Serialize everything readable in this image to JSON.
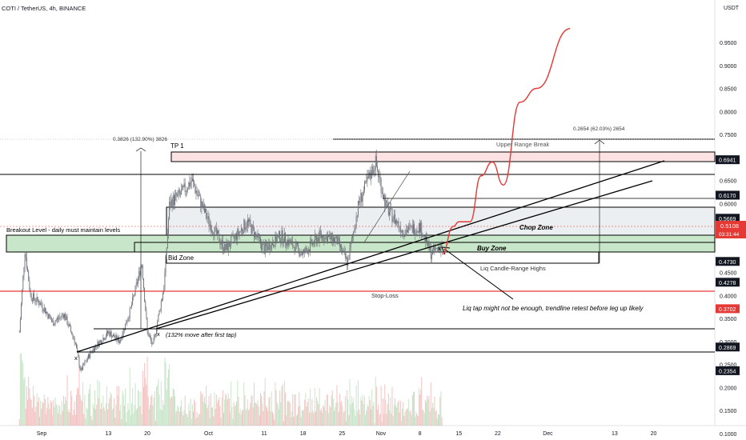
{
  "header": {
    "symbol": "COTI / TetherUS, 4h, BINANCE"
  },
  "axis": {
    "currency": "USDT"
  },
  "price_ticks": [
    "0.9500",
    "0.9000",
    "0.8500",
    "0.8000",
    "0.7500",
    "0.6500",
    "0.6000",
    "0.5500",
    "0.4500",
    "0.4000",
    "0.3500",
    "0.3000",
    "0.2500",
    "0.2000",
    "0.1500",
    "0.1000"
  ],
  "price_ticks_values": [
    0.95,
    0.9,
    0.85,
    0.8,
    0.75,
    0.65,
    0.6,
    0.55,
    0.45,
    0.4,
    0.35,
    0.3,
    0.25,
    0.2,
    0.15,
    0.1
  ],
  "date_ticks": [
    "Sep",
    "13",
    "20",
    "Oct",
    "11",
    "18",
    "25",
    "Nov",
    "8",
    "15",
    "22",
    "Dec",
    "13",
    "20"
  ],
  "level_badges": [
    {
      "label": "0.6941",
      "value": 0.6941,
      "color": "#131722"
    },
    {
      "label": "0.6170",
      "value": 0.617,
      "color": "#131722"
    },
    {
      "label": "0.5669",
      "value": 0.5669,
      "color": "#131722"
    },
    {
      "label": "0.4730",
      "value": 0.473,
      "color": "#131722"
    },
    {
      "label": "0.4278",
      "value": 0.4278,
      "color": "#131722"
    },
    {
      "label": "0.3702",
      "value": 0.3702,
      "color": "#e53935"
    },
    {
      "label": "0.2869",
      "value": 0.2869,
      "color": "#131722"
    },
    {
      "label": "0.2354",
      "value": 0.2354,
      "color": "#131722"
    }
  ],
  "current_price": {
    "label": "0.5108",
    "countdown": "03:31:44",
    "value": 0.5108,
    "color": "#e53935"
  },
  "annotations": {
    "tp1": "TP 1",
    "upper_range_break": "Upper Range Break",
    "chop_zone": "Chop Zone",
    "buy_zone": "Buy Zone",
    "bid_zone": "Bid Zone",
    "liq_highs": "Liq Candle-Range Highs",
    "stop_loss": "Stop-Loss",
    "breakout_level": "Breakout Level - daily must maintain levels",
    "measure_left": "0.3826 (132.90%) 3826",
    "measure_right": "0.2654 (62.03%) 2654",
    "move_note": "(132% move after first tap)",
    "liq_note": "Liq tap might not be enough, trendline retest before leg up likely",
    "x_mark": "x"
  },
  "colors": {
    "red": "#e53935",
    "green_zone": "#c8e6c9",
    "pink_zone": "#fde2e4",
    "grey_zone": "#eceff1",
    "candle": "#6b6f78",
    "line": "#000000"
  },
  "chart_data": {
    "type": "line",
    "title": "COTI / TetherUS, 4h, BINANCE",
    "ylabel": "USDT",
    "ylim": [
      0.08,
      1.0
    ],
    "price_path": [
      {
        "date": "Aug 28",
        "price": 0.32
      },
      {
        "date": "Aug 29",
        "price": 0.5
      },
      {
        "date": "Aug 30",
        "price": 0.4
      },
      {
        "date": "Sep 1",
        "price": 0.38
      },
      {
        "date": "Sep 3",
        "price": 0.34
      },
      {
        "date": "Sep 5",
        "price": 0.36
      },
      {
        "date": "Sep 7",
        "price": 0.3
      },
      {
        "date": "Sep 8",
        "price": 0.235
      },
      {
        "date": "Sep 10",
        "price": 0.28
      },
      {
        "date": "Sep 13",
        "price": 0.32
      },
      {
        "date": "Sep 15",
        "price": 0.3
      },
      {
        "date": "Sep 17",
        "price": 0.37
      },
      {
        "date": "Sep 19",
        "price": 0.47
      },
      {
        "date": "Sep 20",
        "price": 0.32
      },
      {
        "date": "Sep 21",
        "price": 0.29
      },
      {
        "date": "Sep 23",
        "price": 0.42
      },
      {
        "date": "Sep 24",
        "price": 0.6
      },
      {
        "date": "Sep 26",
        "price": 0.62
      },
      {
        "date": "Sep 28",
        "price": 0.65
      },
      {
        "date": "Oct 1",
        "price": 0.56
      },
      {
        "date": "Oct 4",
        "price": 0.5
      },
      {
        "date": "Oct 8",
        "price": 0.56
      },
      {
        "date": "Oct 11",
        "price": 0.5
      },
      {
        "date": "Oct 14",
        "price": 0.53
      },
      {
        "date": "Oct 18",
        "price": 0.49
      },
      {
        "date": "Oct 21",
        "price": 0.53
      },
      {
        "date": "Oct 24",
        "price": 0.52
      },
      {
        "date": "Oct 26",
        "price": 0.47
      },
      {
        "date": "Oct 28",
        "price": 0.6
      },
      {
        "date": "Oct 31",
        "price": 0.69
      },
      {
        "date": "Nov 2",
        "price": 0.59
      },
      {
        "date": "Nov 5",
        "price": 0.54
      },
      {
        "date": "Nov 8",
        "price": 0.55
      },
      {
        "date": "Nov 10",
        "price": 0.49
      },
      {
        "date": "Nov 12",
        "price": 0.5108
      }
    ],
    "projection": [
      {
        "date": "Nov 12",
        "price": 0.49
      },
      {
        "date": "Nov 14",
        "price": 0.55
      },
      {
        "date": "Nov 15",
        "price": 0.56
      },
      {
        "date": "Nov 17",
        "price": 0.56
      },
      {
        "date": "Nov 19",
        "price": 0.66
      },
      {
        "date": "Nov 21",
        "price": 0.69
      },
      {
        "date": "Nov 23",
        "price": 0.64
      },
      {
        "date": "Nov 26",
        "price": 0.82
      },
      {
        "date": "Nov 29",
        "price": 0.85
      },
      {
        "date": "Dec 5",
        "price": 0.98
      }
    ],
    "levels": [
      0.6941,
      0.617,
      0.5669,
      0.473,
      0.4278,
      0.3702,
      0.2869,
      0.2354
    ]
  }
}
